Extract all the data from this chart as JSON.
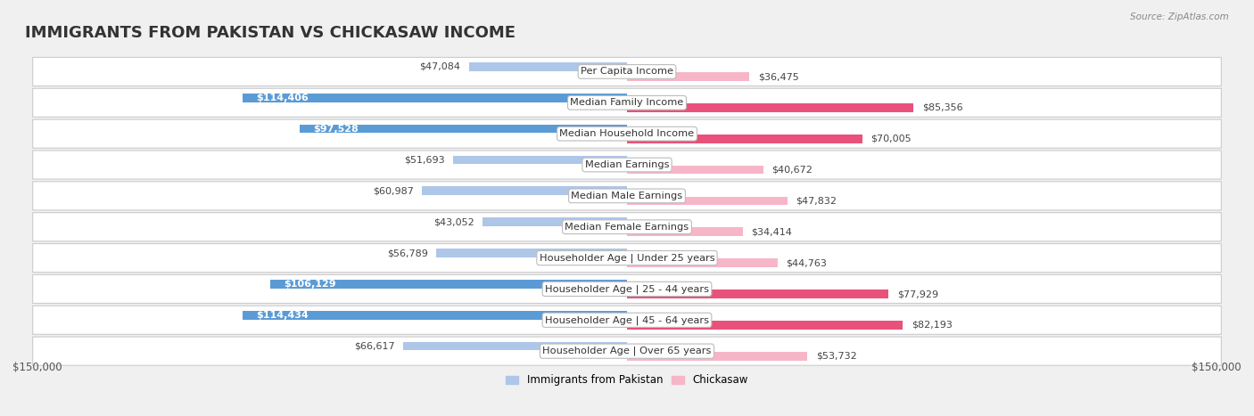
{
  "title": "IMMIGRANTS FROM PAKISTAN VS CHICKASAW INCOME",
  "source": "Source: ZipAtlas.com",
  "categories": [
    "Per Capita Income",
    "Median Family Income",
    "Median Household Income",
    "Median Earnings",
    "Median Male Earnings",
    "Median Female Earnings",
    "Householder Age | Under 25 years",
    "Householder Age | 25 - 44 years",
    "Householder Age | 45 - 64 years",
    "Householder Age | Over 65 years"
  ],
  "pakistan_values": [
    47084,
    114406,
    97528,
    51693,
    60987,
    43052,
    56789,
    106129,
    114434,
    66617
  ],
  "chickasaw_values": [
    36475,
    85356,
    70005,
    40672,
    47832,
    34414,
    44763,
    77929,
    82193,
    53732
  ],
  "pakistan_color_light": "#aec6e8",
  "pakistan_color_dark": "#5b9bd5",
  "chickasaw_color_light": "#f7b6c8",
  "chickasaw_color_dark": "#e8527a",
  "pakistan_label": "Immigrants from Pakistan",
  "chickasaw_label": "Chickasaw",
  "x_max": 150000,
  "x_label_left": "$150,000",
  "x_label_right": "$150,000",
  "background_color": "#f0f0f0",
  "row_bg_color": "#ffffff",
  "title_fontsize": 13,
  "label_fontsize": 8.2,
  "value_fontsize": 8.0,
  "dark_threshold_pak": 90000,
  "dark_threshold_chk": 60000
}
